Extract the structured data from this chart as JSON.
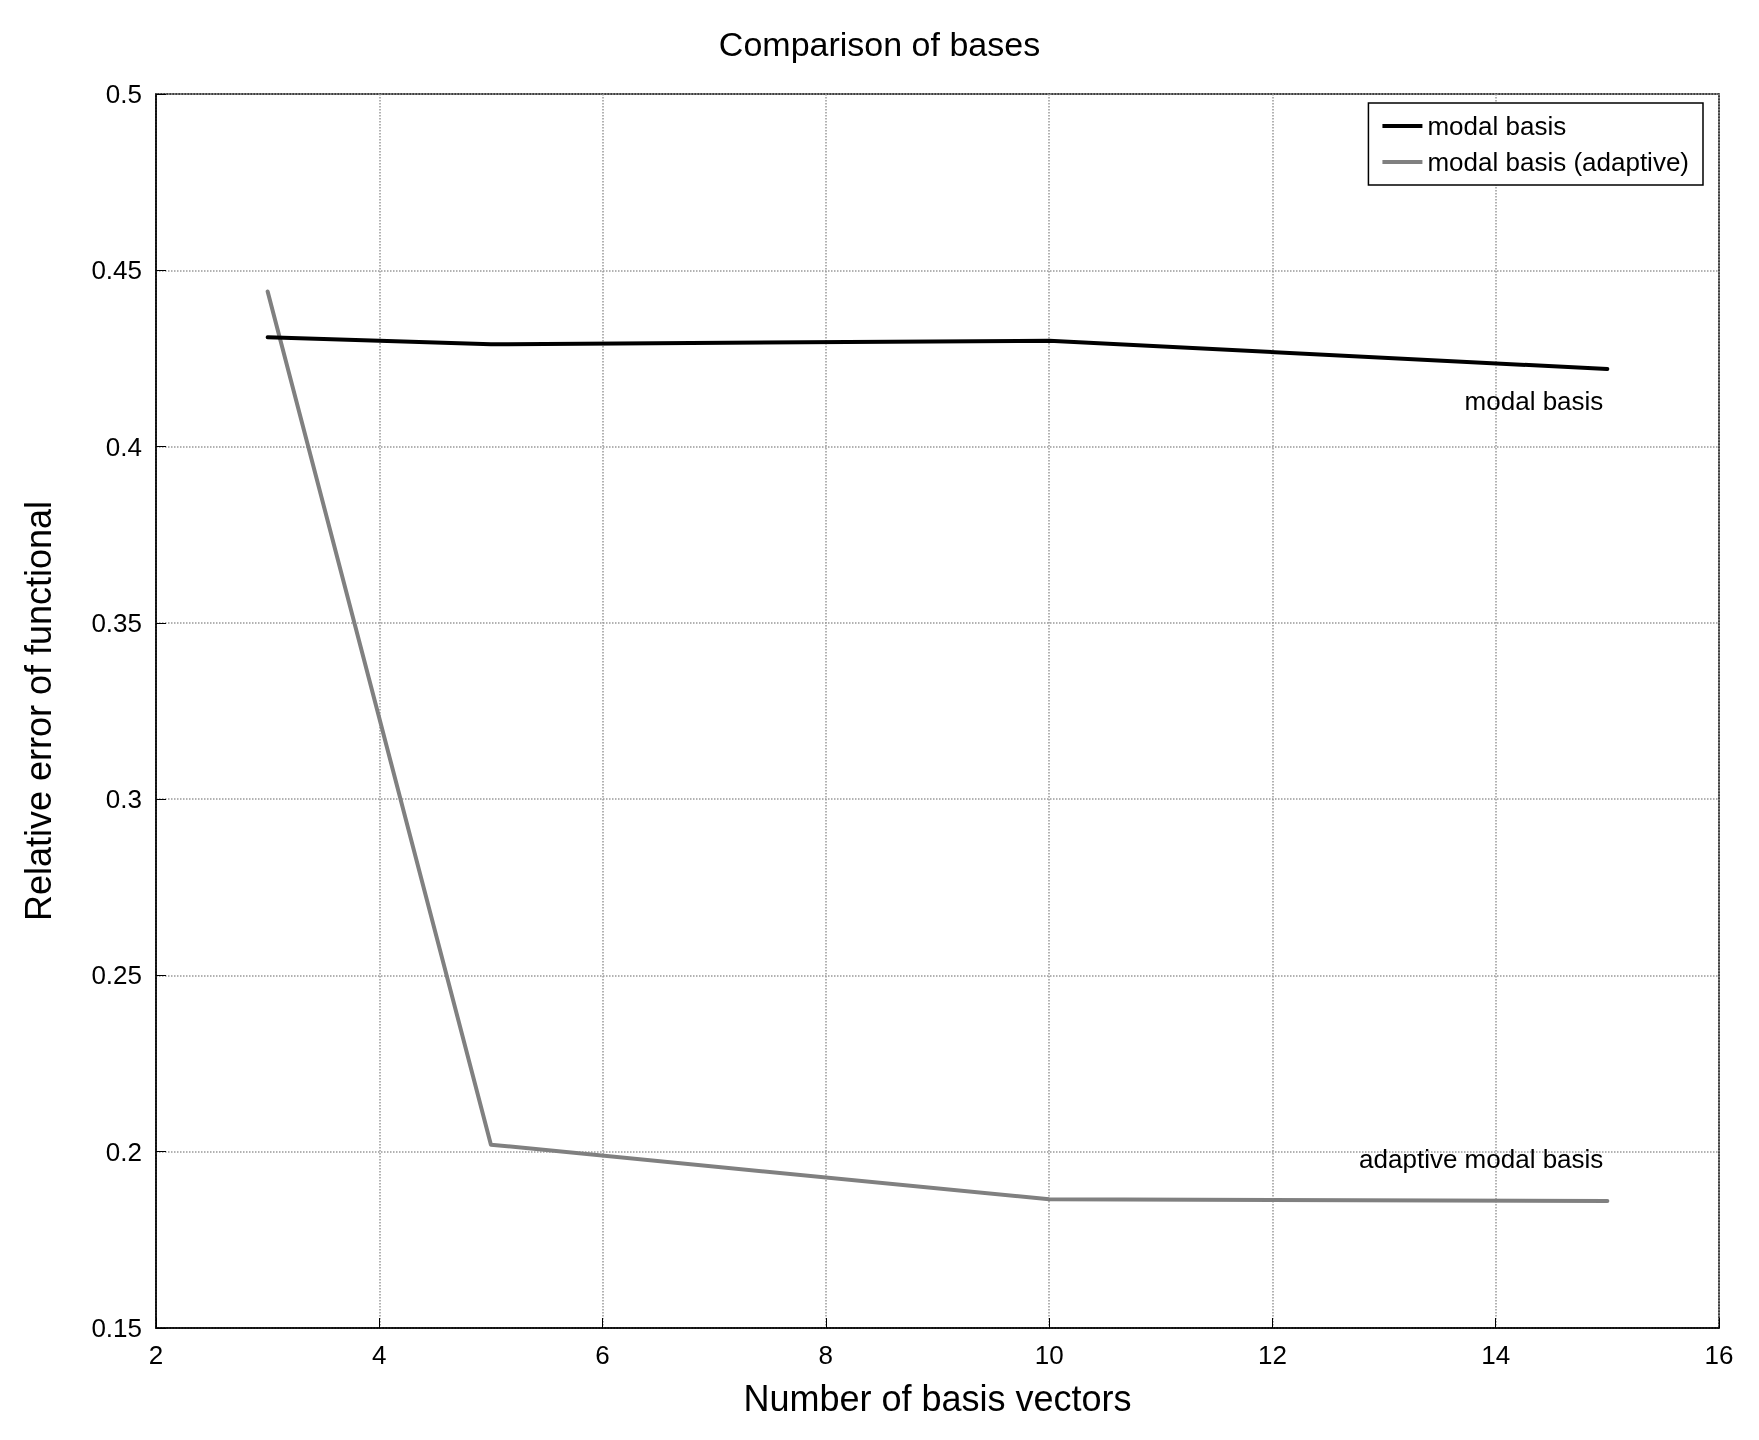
{
  "chart_data": {
    "type": "line",
    "title": "Comparison of bases",
    "xlabel": "Number of basis vectors",
    "ylabel": "Relative error of functional",
    "x": [
      3,
      5,
      10,
      15
    ],
    "series": [
      {
        "name": "modal basis",
        "color": "#000000",
        "values": [
          0.431,
          0.429,
          0.43,
          0.422
        ]
      },
      {
        "name": "modal basis (adaptive)",
        "color": "#808080",
        "values": [
          0.444,
          0.202,
          0.1865,
          0.186
        ]
      }
    ],
    "xlim": [
      2,
      16
    ],
    "xticks": [
      2,
      4,
      6,
      8,
      10,
      12,
      14,
      16
    ],
    "ylim": [
      0.15,
      0.5
    ],
    "yticks": [
      0.15,
      0.2,
      0.25,
      0.3,
      0.35,
      0.4,
      0.45,
      0.5
    ],
    "grid": true,
    "legend": "top right",
    "marker": "none",
    "line_style": "solid",
    "annotations": [
      "modal basis",
      "adaptive modal basis"
    ]
  }
}
